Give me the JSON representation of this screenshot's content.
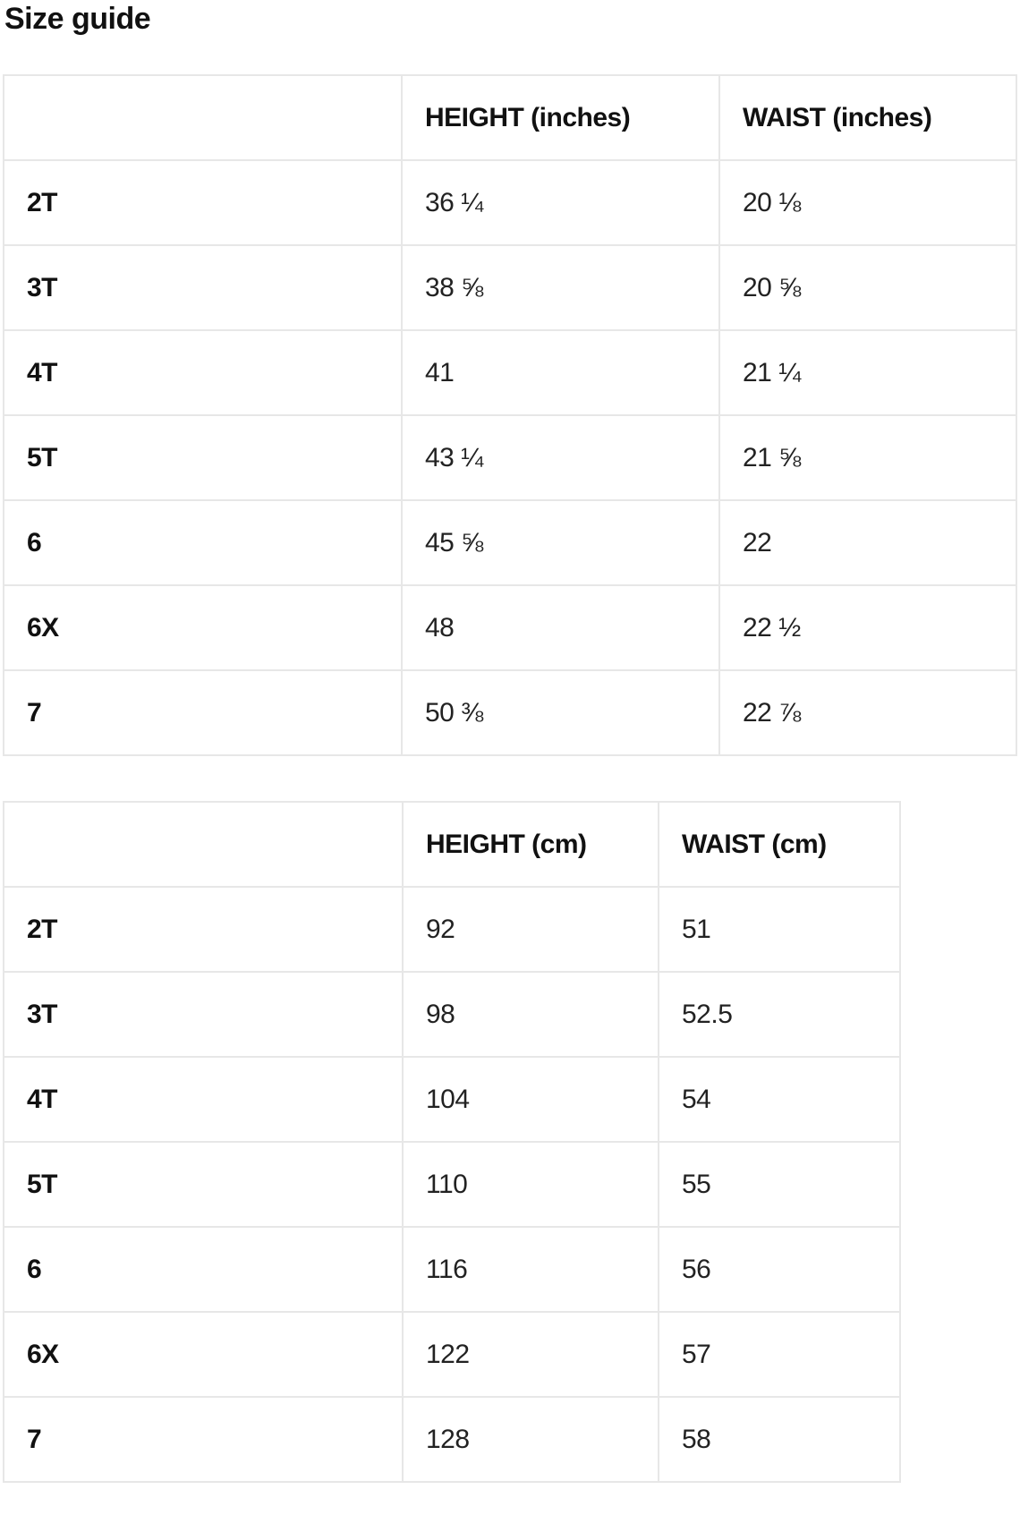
{
  "page": {
    "title": "Size guide"
  },
  "tables": [
    {
      "name": "inches",
      "columns": [
        "",
        "HEIGHT (inches)",
        "WAIST (inches)"
      ],
      "rows": [
        {
          "size": "2T",
          "height": "36 ¼",
          "waist": "20 ⅛"
        },
        {
          "size": "3T",
          "height": "38 ⅝",
          "waist": "20 ⅝"
        },
        {
          "size": "4T",
          "height": "41",
          "waist": "21 ¼"
        },
        {
          "size": "5T",
          "height": "43 ¼",
          "waist": "21 ⅝"
        },
        {
          "size": "6",
          "height": "45 ⅝",
          "waist": "22"
        },
        {
          "size": "6X",
          "height": "48",
          "waist": "22 ½"
        },
        {
          "size": "7",
          "height": "50 ⅜",
          "waist": "22 ⅞"
        }
      ]
    },
    {
      "name": "cm",
      "columns": [
        "",
        "HEIGHT (cm)",
        "WAIST (cm)"
      ],
      "rows": [
        {
          "size": "2T",
          "height": "92",
          "waist": "51"
        },
        {
          "size": "3T",
          "height": "98",
          "waist": "52.5"
        },
        {
          "size": "4T",
          "height": "104",
          "waist": "54"
        },
        {
          "size": "5T",
          "height": "110",
          "waist": "55"
        },
        {
          "size": "6",
          "height": "116",
          "waist": "56"
        },
        {
          "size": "6X",
          "height": "122",
          "waist": "57"
        },
        {
          "size": "7",
          "height": "128",
          "waist": "58"
        }
      ]
    }
  ],
  "colors": {
    "text": "#1a1a1a",
    "heading": "#111111",
    "border": "#e7e7e7",
    "background": "#ffffff"
  }
}
